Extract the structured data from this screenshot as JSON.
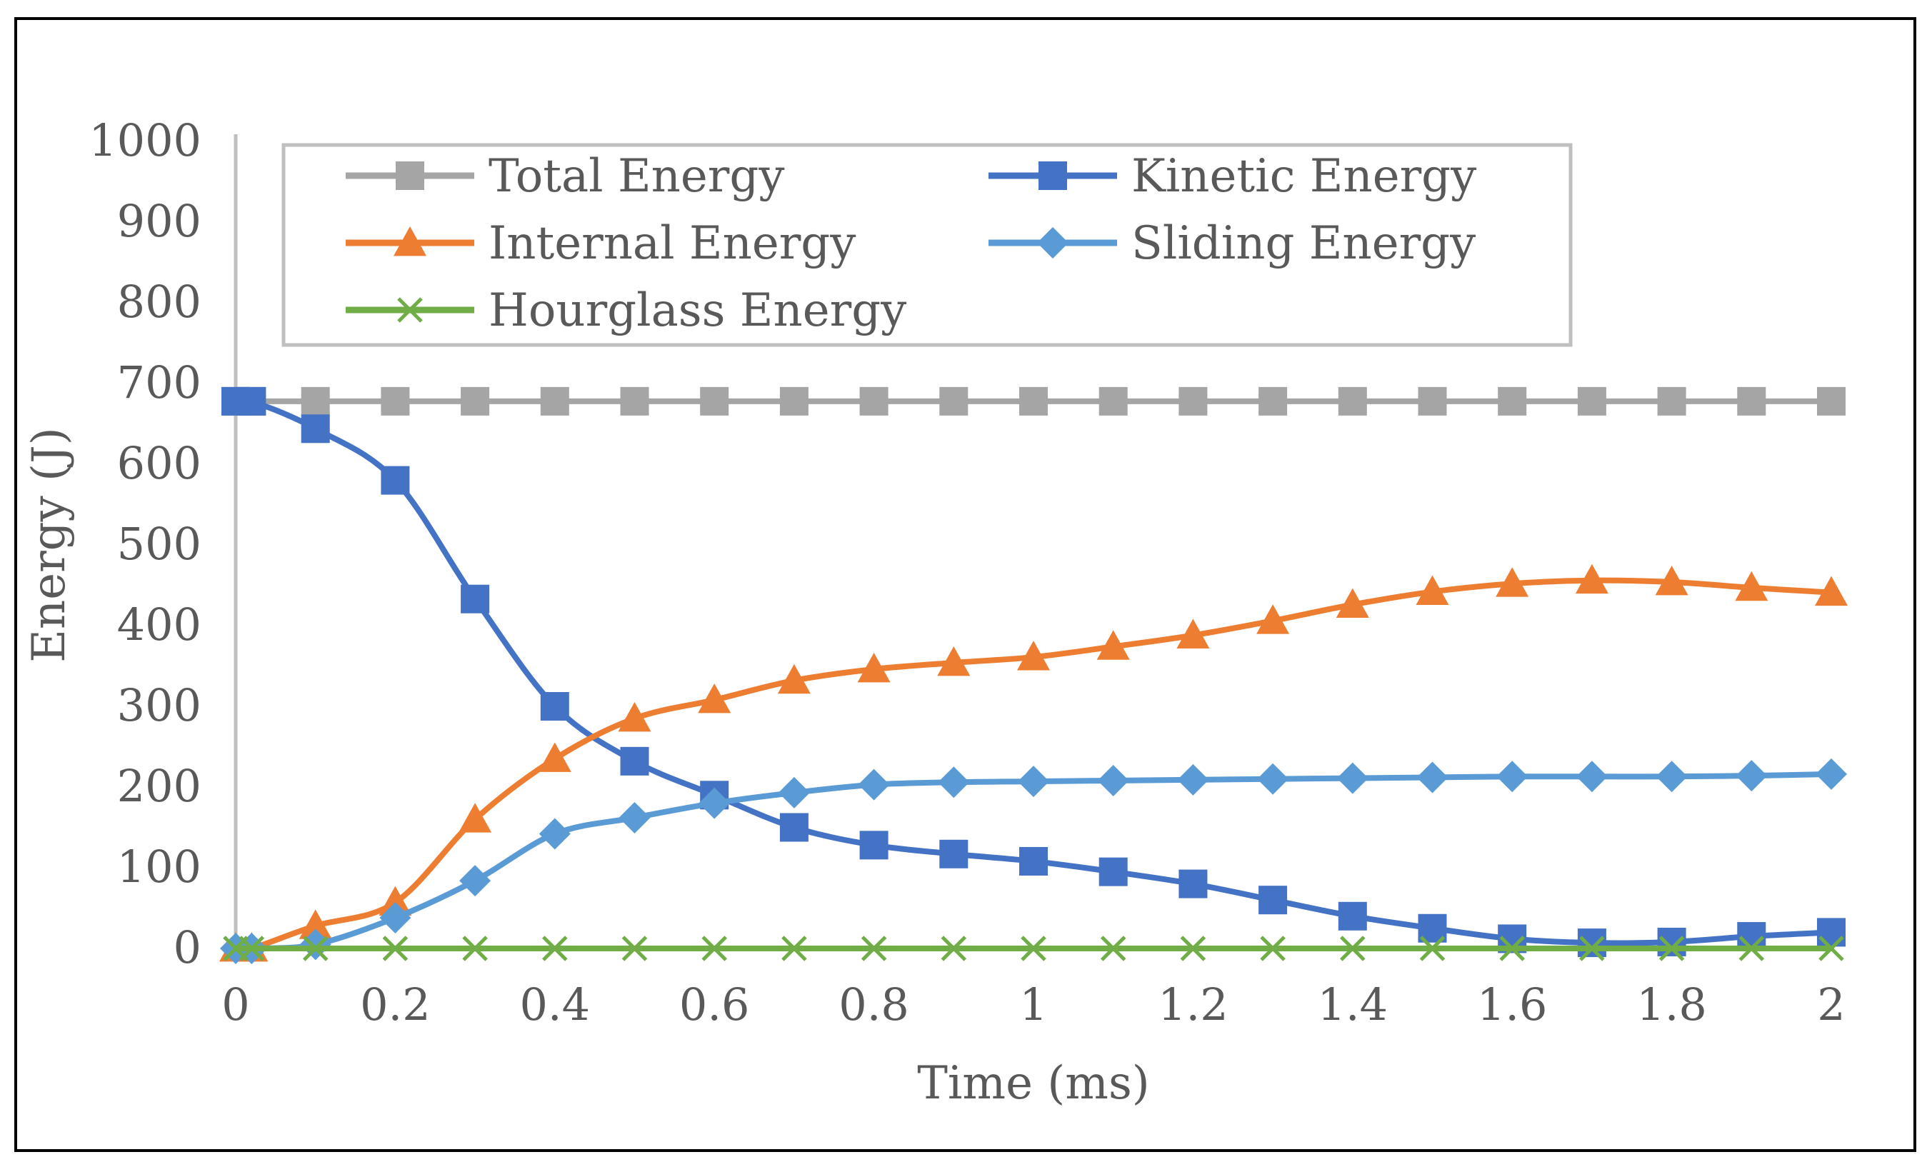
{
  "chart_data": {
    "type": "line",
    "title": "",
    "xlabel": "Time (ms)",
    "ylabel": "Energy (J)",
    "xlim": [
      0,
      2
    ],
    "ylim": [
      0,
      1000
    ],
    "x_ticks": [
      0,
      0.2,
      0.4,
      0.6,
      0.8,
      1,
      1.2,
      1.4,
      1.6,
      1.8,
      2
    ],
    "x_tick_labels": [
      "0",
      "0.2",
      "0.4",
      "0.6",
      "0.8",
      "1",
      "1.2",
      "1.4",
      "1.6",
      "1.8",
      "2"
    ],
    "y_ticks": [
      0,
      100,
      200,
      300,
      400,
      500,
      600,
      700,
      800,
      900,
      1000
    ],
    "y_tick_labels": [
      "0",
      "100",
      "200",
      "300",
      "400",
      "500",
      "600",
      "700",
      "800",
      "900",
      "1000"
    ],
    "grid": false,
    "legend_position": "top",
    "x": [
      0,
      0.02,
      0.1,
      0.2,
      0.3,
      0.4,
      0.5,
      0.6,
      0.7,
      0.8,
      0.9,
      1.0,
      1.1,
      1.2,
      1.3,
      1.4,
      1.5,
      1.6,
      1.7,
      1.8,
      1.9,
      2.0
    ],
    "series": [
      {
        "name": "Total Energy",
        "color": "#A5A5A5",
        "marker": "square",
        "values": [
          678,
          678,
          678,
          678,
          678,
          678,
          678,
          678,
          678,
          678,
          678,
          678,
          678,
          678,
          678,
          678,
          678,
          678,
          678,
          678,
          678,
          678
        ]
      },
      {
        "name": "Kinetic Energy",
        "color": "#4472C4",
        "marker": "square",
        "values": [
          678,
          678,
          644,
          580,
          433,
          300,
          232,
          190,
          150,
          128,
          117,
          108,
          95,
          80,
          60,
          40,
          25,
          12,
          7,
          8,
          15,
          20
        ]
      },
      {
        "name": "Internal Energy",
        "color": "#ED7D31",
        "marker": "triangle",
        "values": [
          0,
          0,
          28,
          57,
          160,
          235,
          285,
          308,
          332,
          346,
          354,
          361,
          374,
          388,
          406,
          426,
          442,
          452,
          456,
          454,
          447,
          441
        ]
      },
      {
        "name": "Sliding Energy",
        "color": "#5B9BD5",
        "marker": "diamond",
        "values": [
          0,
          0,
          5,
          38,
          84,
          142,
          162,
          180,
          193,
          203,
          206,
          207,
          208,
          209,
          210,
          211,
          212,
          213,
          213,
          213,
          214,
          216
        ]
      },
      {
        "name": "Hourglass Energy",
        "color": "#70AD47",
        "marker": "x",
        "values": [
          0,
          0,
          0,
          0,
          0,
          0,
          0,
          0,
          0,
          0,
          0,
          0,
          0,
          0,
          0,
          0,
          0,
          0,
          0,
          0,
          0,
          0
        ]
      }
    ],
    "axis_color": "#BFBFBF",
    "legend_border_color": "#BFBFBF"
  }
}
